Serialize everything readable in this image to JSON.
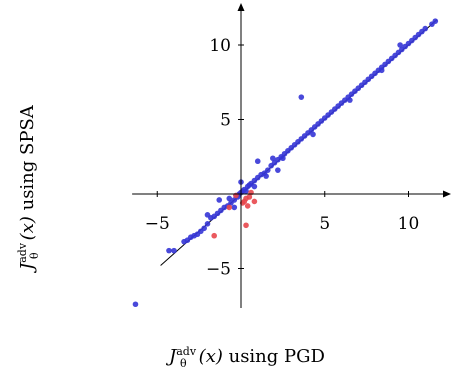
{
  "chart_data": {
    "type": "scatter",
    "xlabel": {
      "symbol": "J",
      "superscript": "adv",
      "subscript": "θ",
      "argument": "(x)",
      "suffix": " using PGD"
    },
    "ylabel": {
      "symbol": "J",
      "superscript": "adv",
      "subscript": "θ",
      "argument": "(x)",
      "suffix": " using SPSA"
    },
    "xlim": [
      -6.5,
      12.2
    ],
    "ylim": [
      -7.5,
      12.9
    ],
    "x_ticks": [
      {
        "value": -5,
        "label": "−5"
      },
      {
        "value": 5,
        "label": "5"
      },
      {
        "value": 10,
        "label": "10"
      }
    ],
    "y_ticks": [
      {
        "value": -5,
        "label": "−5"
      },
      {
        "value": 5,
        "label": "5"
      },
      {
        "value": 10,
        "label": "10"
      }
    ],
    "reference_line": {
      "x": [
        -4.8,
        11.7
      ],
      "y": [
        -4.8,
        11.7
      ]
    },
    "grid": false,
    "series": [
      {
        "color": "#3535d6",
        "points": [
          [
            -6.3,
            -7.4
          ],
          [
            -4.3,
            -3.8
          ],
          [
            -4.0,
            -3.8
          ],
          [
            -3.4,
            -3.2
          ],
          [
            -3.2,
            -3.1
          ],
          [
            -3.0,
            -2.9
          ],
          [
            -2.8,
            -2.8
          ],
          [
            -2.6,
            -2.7
          ],
          [
            -2.4,
            -2.5
          ],
          [
            -2.2,
            -2.3
          ],
          [
            -2.0,
            -2.0
          ],
          [
            -1.8,
            -1.6
          ],
          [
            -1.6,
            -1.5
          ],
          [
            -1.4,
            -1.3
          ],
          [
            -1.2,
            -1.1
          ],
          [
            -1.0,
            -0.9
          ],
          [
            -0.8,
            -0.8
          ],
          [
            -0.6,
            -0.6
          ],
          [
            -0.4,
            -0.4
          ],
          [
            -0.3,
            -0.1
          ],
          [
            -0.2,
            -0.2
          ],
          [
            -0.1,
            0.0
          ],
          [
            -1.3,
            -0.4
          ],
          [
            -0.4,
            -0.9
          ],
          [
            0.0,
            0.1
          ],
          [
            0.1,
            0.2
          ],
          [
            0.2,
            0.3
          ],
          [
            0.3,
            0.2
          ],
          [
            0.4,
            0.5
          ],
          [
            0.5,
            0.6
          ],
          [
            0.6,
            0.7
          ],
          [
            0.8,
            0.9
          ],
          [
            1.0,
            1.1
          ],
          [
            1.2,
            1.3
          ],
          [
            1.4,
            1.4
          ],
          [
            1.6,
            1.6
          ],
          [
            1.8,
            1.9
          ],
          [
            2.0,
            2.1
          ],
          [
            2.2,
            2.3
          ],
          [
            2.4,
            2.5
          ],
          [
            2.6,
            2.7
          ],
          [
            2.8,
            2.9
          ],
          [
            3.0,
            3.1
          ],
          [
            3.2,
            3.3
          ],
          [
            3.4,
            3.5
          ],
          [
            3.6,
            3.7
          ],
          [
            3.8,
            3.9
          ],
          [
            4.0,
            4.1
          ],
          [
            4.2,
            4.3
          ],
          [
            4.4,
            4.5
          ],
          [
            4.6,
            4.7
          ],
          [
            4.8,
            4.9
          ],
          [
            5.0,
            5.1
          ],
          [
            5.2,
            5.3
          ],
          [
            5.4,
            5.5
          ],
          [
            5.6,
            5.7
          ],
          [
            5.8,
            5.9
          ],
          [
            6.0,
            6.1
          ],
          [
            6.2,
            6.3
          ],
          [
            6.4,
            6.5
          ],
          [
            6.6,
            6.7
          ],
          [
            6.8,
            6.9
          ],
          [
            7.0,
            7.1
          ],
          [
            7.2,
            7.3
          ],
          [
            7.4,
            7.5
          ],
          [
            7.6,
            7.7
          ],
          [
            7.8,
            7.9
          ],
          [
            8.0,
            8.1
          ],
          [
            8.2,
            8.3
          ],
          [
            8.4,
            8.5
          ],
          [
            8.6,
            8.7
          ],
          [
            8.8,
            8.9
          ],
          [
            9.0,
            9.1
          ],
          [
            9.2,
            9.3
          ],
          [
            9.4,
            9.5
          ],
          [
            9.6,
            9.7
          ],
          [
            9.8,
            9.9
          ],
          [
            10.0,
            10.1
          ],
          [
            10.2,
            10.3
          ],
          [
            10.4,
            10.5
          ],
          [
            10.6,
            10.7
          ],
          [
            10.8,
            10.9
          ],
          [
            11.0,
            11.1
          ],
          [
            11.4,
            11.4
          ],
          [
            11.6,
            11.6
          ],
          [
            9.5,
            10.0
          ],
          [
            3.6,
            6.5
          ],
          [
            1.0,
            2.2
          ],
          [
            0.0,
            0.8
          ],
          [
            2.2,
            1.6
          ],
          [
            -0.7,
            -0.3
          ],
          [
            1.5,
            1.2
          ],
          [
            1.9,
            2.4
          ],
          [
            2.5,
            2.4
          ],
          [
            -2.0,
            -1.4
          ],
          [
            4.3,
            4.0
          ],
          [
            6.5,
            6.3
          ],
          [
            8.4,
            8.3
          ],
          [
            0.8,
            0.5
          ]
        ]
      },
      {
        "color": "#e8474c",
        "points": [
          [
            0.3,
            -0.3
          ],
          [
            0.4,
            -0.8
          ],
          [
            0.5,
            -0.2
          ],
          [
            0.2,
            -0.5
          ],
          [
            0.8,
            -0.5
          ],
          [
            0.6,
            0.1
          ],
          [
            -0.7,
            -0.9
          ],
          [
            0.3,
            -2.1
          ],
          [
            -0.3,
            -0.1
          ],
          [
            -1.6,
            -2.8
          ],
          [
            0.1,
            -0.6
          ]
        ]
      }
    ]
  }
}
